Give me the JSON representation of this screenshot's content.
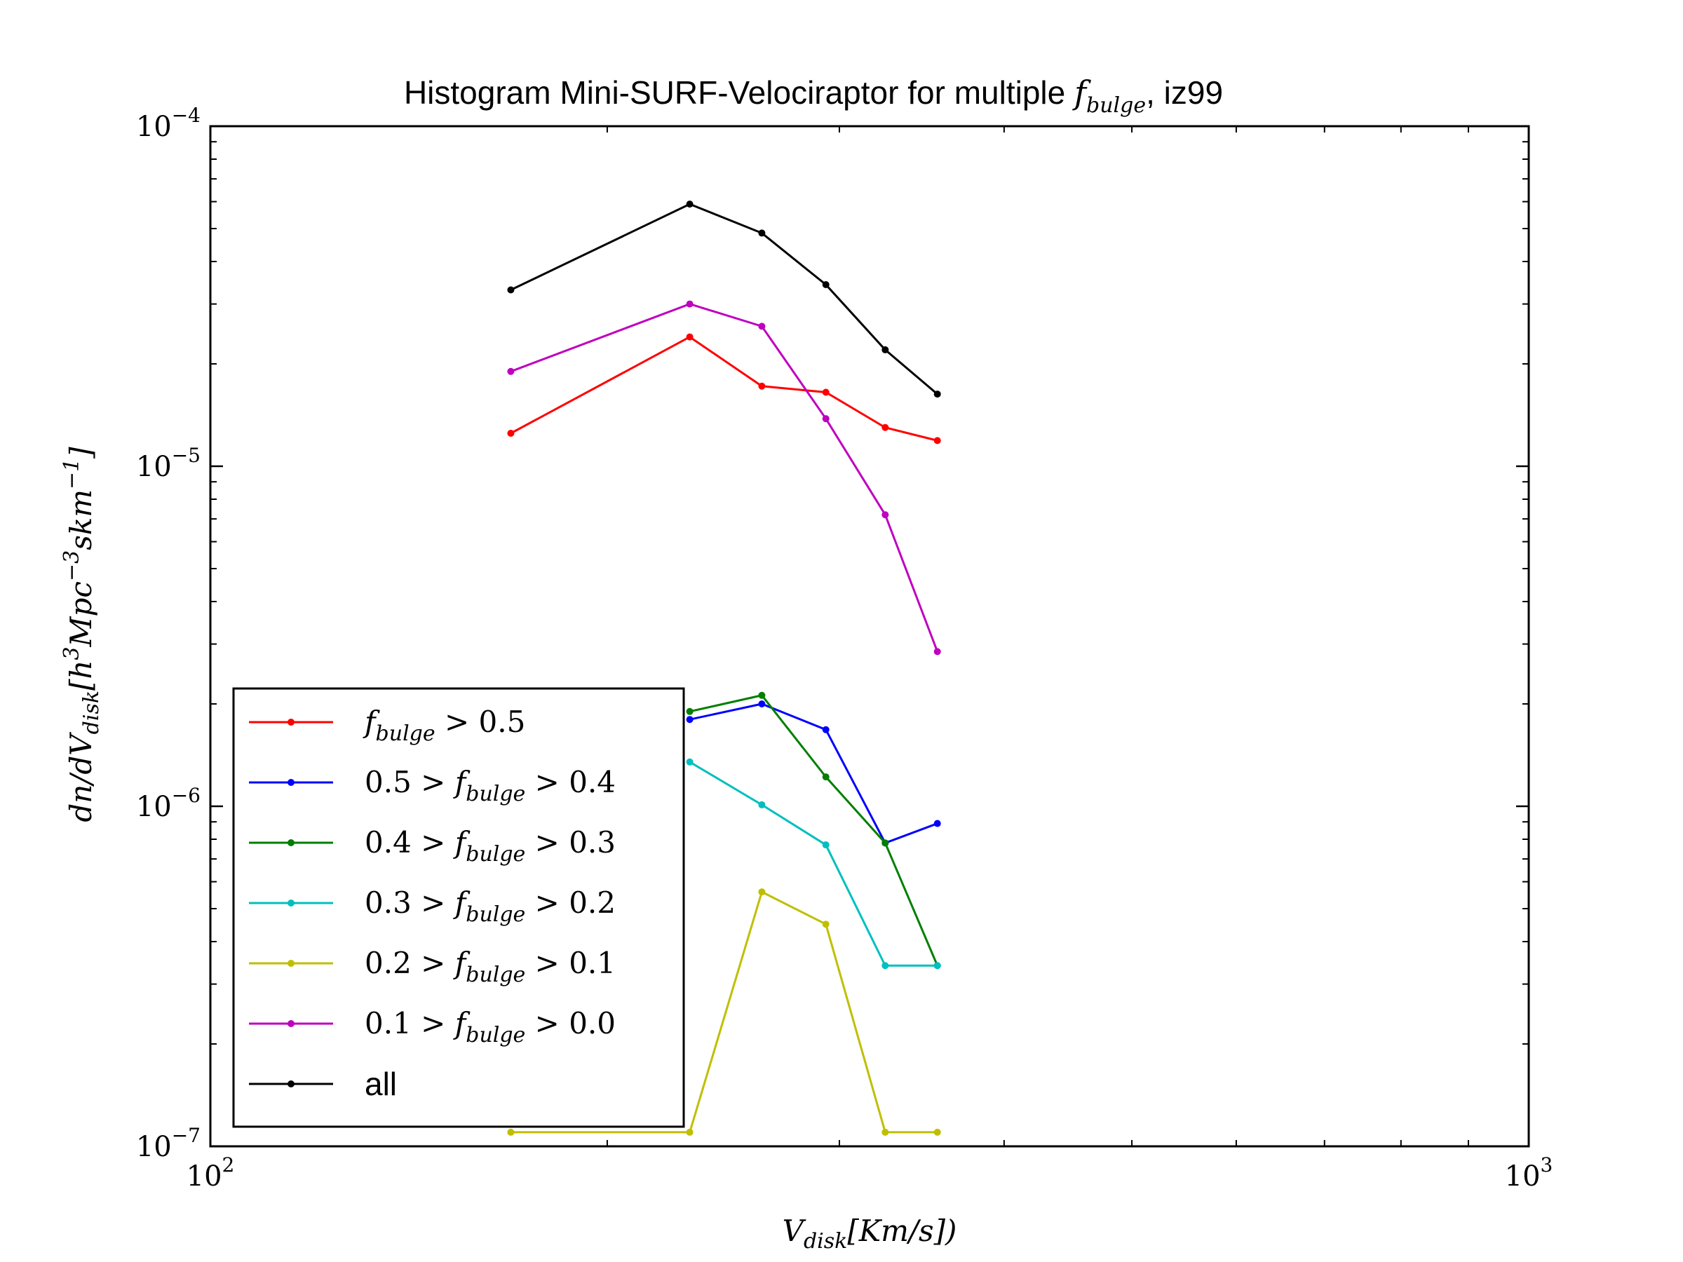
{
  "chart_data": {
    "type": "line",
    "title_prefix": "Histogram Mini-SURF-Velociraptor for multiple ",
    "title_math": "f",
    "title_math_sub": "bulge",
    "title_suffix": ", iz99",
    "xlabel_main": "V",
    "xlabel_sub": "disk",
    "xlabel_rest": "[Km/s])",
    "ylabel": "dn/dV_disk [h^3 Mpc^-3 s km^-1]",
    "ylabel_parts": {
      "a": "dn/dV",
      "sub": "disk",
      "b": "[h",
      "sup1": "3",
      "c": "Mpc",
      "sup2": "−3",
      "d": "skm",
      "sup3": "−1",
      "e": "]"
    },
    "x_scale": "log",
    "y_scale": "log",
    "xlim": [
      100,
      1000
    ],
    "ylim": [
      1e-07,
      0.0001
    ],
    "x_ticks": [
      {
        "value": 100,
        "base": "10",
        "exp": "2"
      },
      {
        "value": 1000,
        "base": "10",
        "exp": "3"
      }
    ],
    "y_ticks": [
      {
        "value": 1e-07,
        "base": "10",
        "exp": "−7"
      },
      {
        "value": 1e-06,
        "base": "10",
        "exp": "−6"
      },
      {
        "value": 1e-05,
        "base": "10",
        "exp": "−5"
      },
      {
        "value": 0.0001,
        "base": "10",
        "exp": "−4"
      }
    ],
    "x": [
      169,
      231,
      262,
      293,
      325,
      356
    ],
    "series": [
      {
        "legend_prefix": "",
        "legend_math": "f",
        "legend_sub": "bulge",
        "legend_suffix": " > 0.5",
        "color": "#ff0000",
        "values": [
          1.25e-05,
          2.4e-05,
          1.72e-05,
          1.65e-05,
          1.3e-05,
          1.19e-05
        ]
      },
      {
        "legend_prefix": "0.5 > ",
        "legend_math": "f",
        "legend_sub": "bulge",
        "legend_suffix": " > 0.4",
        "color": "#0000ff",
        "values": [
          null,
          1.8e-06,
          2e-06,
          1.68e-06,
          7.8e-07,
          8.9e-07
        ]
      },
      {
        "legend_prefix": "0.4 > ",
        "legend_math": "f",
        "legend_sub": "bulge",
        "legend_suffix": " > 0.3",
        "color": "#007f00",
        "values": [
          null,
          1.9e-06,
          2.12e-06,
          1.22e-06,
          7.8e-07,
          3.4e-07
        ]
      },
      {
        "legend_prefix": "0.3 > ",
        "legend_math": "f",
        "legend_sub": "bulge",
        "legend_suffix": " > 0.2",
        "color": "#00bfbf",
        "values": [
          null,
          1.35e-06,
          1.01e-06,
          7.7e-07,
          3.4e-07,
          3.4e-07
        ]
      },
      {
        "legend_prefix": "0.2 > ",
        "legend_math": "f",
        "legend_sub": "bulge",
        "legend_suffix": " > 0.1",
        "color": "#bfbf00",
        "values": [
          1.1e-07,
          1.1e-07,
          5.6e-07,
          4.5e-07,
          1.1e-07,
          1.1e-07
        ]
      },
      {
        "legend_prefix": "0.1 > ",
        "legend_math": "f",
        "legend_sub": "bulge",
        "legend_suffix": " > 0.0",
        "color": "#bf00bf",
        "values": [
          1.9e-05,
          3e-05,
          2.58e-05,
          1.38e-05,
          7.2e-06,
          2.85e-06
        ]
      },
      {
        "legend_plain": "all",
        "color": "#000000",
        "values": [
          3.3e-05,
          5.9e-05,
          4.85e-05,
          3.42e-05,
          2.2e-05,
          1.63e-05
        ]
      }
    ],
    "legend_position": "lower-left",
    "grid": false
  }
}
